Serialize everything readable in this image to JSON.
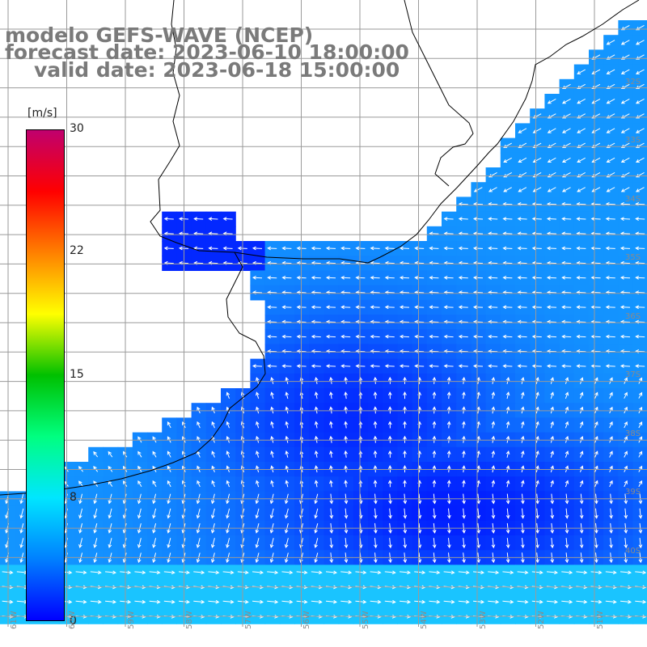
{
  "title": {
    "model": "modelo GEFS-WAVE (NCEP)",
    "forecast": "forecast date: 2023-06-10 18:00:00",
    "valid": "valid date: 2023-06-18 15:00:00"
  },
  "colorbar": {
    "unit": "[m/s]",
    "ticks": [
      "30",
      "22",
      "15",
      "8",
      "0"
    ],
    "tick_values": [
      30,
      22,
      15,
      8,
      0
    ],
    "colors": [
      "#0000ff",
      "#0080ff",
      "#00e6ff",
      "#00ff80",
      "#00c000",
      "#ffff00",
      "#ff8000",
      "#ff0000",
      "#c0006e"
    ]
  },
  "lat_labels": [
    "32S",
    "33S",
    "34S",
    "35S",
    "36S",
    "37S",
    "38S",
    "39S",
    "40S"
  ],
  "lon_labels": [
    "61W",
    "60W",
    "59W",
    "58W",
    "57W",
    "56W",
    "55W",
    "54W",
    "53W",
    "52W",
    "51W"
  ],
  "colors": {
    "land": "#ffffff",
    "coast": "#000000",
    "grid": "#9a9a9a",
    "arrow": "#ffffff"
  }
}
